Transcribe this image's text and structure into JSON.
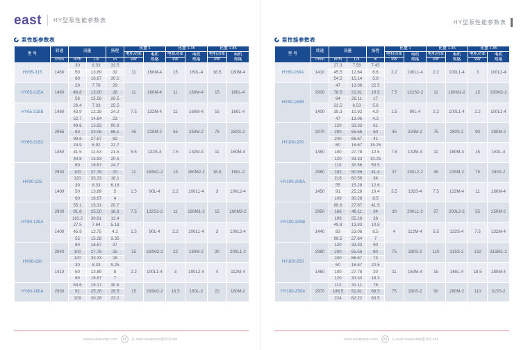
{
  "colors": {
    "header_navy": "#1a4a8f",
    "logo_purple": "#5a4b9c",
    "accent_pink": "#eec5c7",
    "model_blue": "#4a7db8"
  },
  "page_left": {
    "header": {
      "logo": "east",
      "title": "HY型泵性能参数表"
    },
    "section_title": "泵性能参数表",
    "footer": {
      "website": "www.eastpump.com",
      "page_number": "59",
      "email": "E-mail:eastpump@163.net"
    }
  },
  "page_right": {
    "header": {
      "title": "HY型泵性能参数表"
    },
    "section_title": "泵性能参数表",
    "footer": {
      "website": "www.eastpump.com",
      "page_number": "60",
      "email": "E-mail:eastpump@163.net"
    }
  },
  "table_headers": {
    "model": "型 号",
    "speed": "转速",
    "speed_unit": "r/min",
    "flow": "流量",
    "flow_units": [
      "m³/h",
      "L/s"
    ],
    "head": "扬程",
    "head_unit": "m",
    "sg_groups": [
      "比重 1",
      "比重 1.35",
      "比重 1.85"
    ],
    "motor_power": "电机功率",
    "motor_power_unit": "kW",
    "motor_spec": "电机规格"
  },
  "left_table": {
    "models": [
      {
        "model": "HY65-315",
        "blocks": [
          {
            "speed": "1460",
            "flows": [
              [
                "30",
                "8.33",
                "33.5"
              ],
              [
                "50",
                "13.89",
                "32"
              ],
              [
                "60",
                "16.67",
                "30.5"
              ]
            ],
            "sg": [
              [
                "11",
                "160M-4"
              ],
              [
                "15",
                "160L-4"
              ],
              [
                "18.5",
                "180M-4"
              ]
            ]
          }
        ]
      },
      {
        "model": "HY65-315A",
        "blocks": [
          {
            "speed": "1460",
            "flows": [
              [
                "28",
                "7.78",
                "29"
              ],
              [
                "46.8",
                "13.00",
                "28"
              ],
              [
                "56",
                "15.56",
                "26.5"
              ]
            ],
            "sg": [
              [
                "11",
                "160M-4"
              ],
              [
                "11",
                "160M-4"
              ],
              [
                "15",
                "160L-4"
              ]
            ]
          }
        ]
      },
      {
        "model": "HY65-315B",
        "blocks": [
          {
            "speed": "1460",
            "flows": [
              [
                "26.4",
                "7.33",
                "25.5"
              ],
              [
                "43.9",
                "12.19",
                "24.3"
              ],
              [
                "52.7",
                "14.64",
                "23"
              ]
            ],
            "sg": [
              [
                "7.5",
                "132M-4"
              ],
              [
                "11",
                "160M-4"
              ],
              [
                "15",
                "160L-4"
              ]
            ]
          }
        ]
      },
      {
        "model": "HY65-315C",
        "blocks": [
          {
            "speed": "2965",
            "flows": [
              [
                "49.8",
                "13.83",
                "90.9"
              ],
              [
                "83",
                "23.06",
                "86.1"
              ],
              [
                "99.6",
                "27.67",
                "82"
              ]
            ],
            "sg": [
              [
                "45",
                "225M-2"
              ],
              [
                "55",
                "250M-2"
              ],
              [
                "75",
                "280S-2"
              ]
            ]
          },
          {
            "speed": "1450",
            "flows": [
              [
                "24.9",
                "6.92",
                "22.7"
              ],
              [
                "41.5",
                "11.53",
                "21.5"
              ],
              [
                "49.8",
                "13.83",
                "20.5"
              ]
            ],
            "sg": [
              [
                "5.5",
                "132S-4"
              ],
              [
                "7.5",
                "132M-4"
              ],
              [
                "11",
                "160M-4"
              ]
            ]
          }
        ]
      },
      {
        "model": "HY80-125",
        "blocks": [
          {
            "speed": "2930",
            "flows": [
              [
                "60",
                "16.67",
                "24.7"
              ],
              [
                "100",
                "27.78",
                "20"
              ],
              [
                "120",
                "33.33",
                "16.1"
              ]
            ],
            "sg": [
              [
                "11",
                "160M1-2"
              ],
              [
                "15",
                "160M2-2"
              ],
              [
                "18.5",
                "160L-2"
              ]
            ]
          },
          {
            "speed": "1400",
            "flows": [
              [
                "30",
                "8.33",
                "6.18"
              ],
              [
                "50",
                "13.89",
                "5"
              ],
              [
                "60",
                "16.67",
                "4"
              ]
            ],
            "sg": [
              [
                "1.5",
                "90L-4"
              ],
              [
                "2.2",
                "100L1-4"
              ],
              [
                "3",
                "100L2-4"
              ]
            ]
          }
        ]
      },
      {
        "model": "HY80-125A",
        "blocks": [
          {
            "speed": "2930",
            "flows": [
              [
                "55.1",
                "15.31",
                "20.7"
              ],
              [
                "91.8",
                "25.50",
                "16.8"
              ],
              [
                "110.2",
                "30.61",
                "13.4"
              ]
            ],
            "sg": [
              [
                "7.5",
                "132S2-2"
              ],
              [
                "11",
                "160M1-2"
              ],
              [
                "15",
                "160M2-2"
              ]
            ]
          },
          {
            "speed": "1400",
            "flows": [
              [
                "27.5",
                "7.64",
                "5.18"
              ],
              [
                "45.9",
                "12.75",
                "4.2"
              ],
              [
                "55",
                "15.28",
                "3.35"
              ]
            ],
            "sg": [
              [
                "1.5",
                "90L-4"
              ],
              [
                "2.2",
                "100L1-4"
              ],
              [
                "3",
                "100L2-4"
              ]
            ]
          }
        ]
      },
      {
        "model": "HY80-160",
        "blocks": [
          {
            "speed": "2940",
            "flows": [
              [
                "60",
                "16.67",
                "37"
              ],
              [
                "100",
                "27.78",
                "32"
              ],
              [
                "120",
                "33.33",
                "28"
              ]
            ],
            "sg": [
              [
                "15",
                "160M2-2"
              ],
              [
                "22",
                "180M-2"
              ],
              [
                "30",
                "200L1-2"
              ]
            ]
          },
          {
            "speed": "1410",
            "flows": [
              [
                "30",
                "8.33",
                "9.25"
              ],
              [
                "50",
                "13.89",
                "8"
              ],
              [
                "60",
                "16.67",
                "7"
              ]
            ],
            "sg": [
              [
                "2.2",
                "100L1-4"
              ],
              [
                "3",
                "100L2-4"
              ],
              [
                "4",
                "112M-4"
              ]
            ]
          }
        ]
      },
      {
        "model": "HY80-160A",
        "blocks": [
          {
            "speed": "2930",
            "flows": [
              [
                "54.6",
                "15.17",
                "30.6"
              ],
              [
                "91",
                "25.28",
                "26.5"
              ],
              [
                "109",
                "30.28",
                "23.2"
              ]
            ],
            "sg": [
              [
                "15",
                "160M2-2"
              ],
              [
                "18.5",
                "160L-2"
              ],
              [
                "22",
                "180M-2"
              ]
            ]
          }
        ]
      }
    ]
  },
  "right_table": {
    "models": [
      {
        "model": "HY80-160A",
        "blocks": [
          {
            "speed": "1410",
            "flows": [
              [
                "27.3",
                "7.58",
                "7.45"
              ],
              [
                "45.5",
                "12.64",
                "6.6"
              ],
              [
                "54.5",
                "15.14",
                "5.8"
              ]
            ],
            "sg": [
              [
                "2.2",
                "100L1-4"
              ],
              [
                "2.2",
                "100L1-4"
              ],
              [
                "3",
                "100L2-4"
              ]
            ]
          }
        ]
      },
      {
        "model": "HY80-160B",
        "blocks": [
          {
            "speed": "2930",
            "flows": [
              [
                "47",
                "13.06",
                "22.5"
              ],
              [
                "78.5",
                "21.81",
                "19.5"
              ],
              [
                "94",
                "26.11",
                "17"
              ]
            ],
            "sg": [
              [
                "7.5",
                "132S2-2"
              ],
              [
                "11",
                "160M1-2"
              ],
              [
                "15",
                "160M2-2"
              ]
            ]
          },
          {
            "speed": "1400",
            "flows": [
              [
                "23.5",
                "6.53",
                "5.6"
              ],
              [
                "39.3",
                "10.92",
                "4.9"
              ],
              [
                "47",
                "13.06",
                "4.3"
              ]
            ],
            "sg": [
              [
                "1.5",
                "90L-4"
              ],
              [
                "2.2",
                "100L1-4"
              ],
              [
                "2.2",
                "100L1-4"
              ]
            ]
          }
        ]
      },
      {
        "model": "HY100-200",
        "blocks": [
          {
            "speed": "2970",
            "flows": [
              [
                "120",
                "33.33",
                "61"
              ],
              [
                "200",
                "55.56",
                "50"
              ],
              [
                "240",
                "66.67",
                "41"
              ]
            ],
            "sg": [
              [
                "45",
                "225M-2"
              ],
              [
                "75",
                "280S-2"
              ],
              [
                "90",
                "280M-2"
              ]
            ]
          },
          {
            "speed": "1450",
            "flows": [
              [
                "60",
                "16.67",
                "15.25"
              ],
              [
                "100",
                "27.78",
                "12.5"
              ],
              [
                "120",
                "33.33",
                "10.25"
              ]
            ],
            "sg": [
              [
                "7.5",
                "132M-4"
              ],
              [
                "11",
                "160M-4"
              ],
              [
                "15",
                "160L-4"
              ]
            ]
          }
        ]
      },
      {
        "model": "HY100-200A",
        "blocks": [
          {
            "speed": "2960",
            "flows": [
              [
                "110",
                "30.56",
                "50.5"
              ],
              [
                "182",
                "50.56",
                "41.4"
              ],
              [
                "218",
                "60.56",
                "34"
              ]
            ],
            "sg": [
              [
                "37",
                "200L2-2"
              ],
              [
                "45",
                "225M-2"
              ],
              [
                "75",
                "280S-2"
              ]
            ]
          },
          {
            "speed": "1450",
            "flows": [
              [
                "55",
                "15.28",
                "12.6"
              ],
              [
                "91",
                "25.28",
                "10.4"
              ],
              [
                "109",
                "30.28",
                "8.5"
              ]
            ],
            "sg": [
              [
                "5.5",
                "132S-4"
              ],
              [
                "7.5",
                "132M-4"
              ],
              [
                "11",
                "160M-4"
              ]
            ]
          }
        ]
      },
      {
        "model": "HY100-200B",
        "blocks": [
          {
            "speed": "2950",
            "flows": [
              [
                "99.6",
                "27.67",
                "41.5"
              ],
              [
                "166",
                "46.11",
                "34"
              ],
              [
                "199",
                "55.28",
                "28"
              ]
            ],
            "sg": [
              [
                "30",
                "200L1-2"
              ],
              [
                "37",
                "200L2-2"
              ],
              [
                "55",
                "250M-2"
              ]
            ]
          },
          {
            "speed": "1440",
            "flows": [
              [
                "49.8",
                "13.83",
                "10.5"
              ],
              [
                "83",
                "23.06",
                "8.5"
              ],
              [
                "99.5",
                "27.64",
                "7"
              ]
            ],
            "sg": [
              [
                "4",
                "112M-4"
              ],
              [
                "5.5",
                "132S-4"
              ],
              [
                "7.5",
                "132M-4"
              ]
            ]
          }
        ]
      },
      {
        "model": "HY100-250",
        "blocks": [
          {
            "speed": "2980",
            "flows": [
              [
                "120",
                "33.33",
                "90"
              ],
              [
                "200",
                "55.56",
                "80"
              ],
              [
                "240",
                "66.67",
                "73"
              ]
            ],
            "sg": [
              [
                "75",
                "280S-2"
              ],
              [
                "110",
                "315S-2"
              ],
              [
                "132",
                "315M1-2"
              ]
            ]
          },
          {
            "speed": "1460",
            "flows": [
              [
                "60",
                "16.67",
                "22.5"
              ],
              [
                "100",
                "27.78",
                "20"
              ],
              [
                "120",
                "33.33",
                "18.3"
              ]
            ],
            "sg": [
              [
                "11",
                "160M-4"
              ],
              [
                "15",
                "160L-4"
              ],
              [
                "18.5",
                "180M-4"
              ]
            ]
          }
        ]
      },
      {
        "model": "HY100-250A",
        "blocks": [
          {
            "speed": "2970",
            "flows": [
              [
                "112",
                "31.11",
                "78"
              ],
              [
                "186.5",
                "51.81",
                "69.5"
              ],
              [
                "224",
                "62.22",
                "63.5"
              ]
            ],
            "sg": [
              [
                "75",
                "280S-2"
              ],
              [
                "90",
                "280M-2"
              ],
              [
                "110",
                "315S-2"
              ]
            ]
          }
        ]
      }
    ]
  }
}
